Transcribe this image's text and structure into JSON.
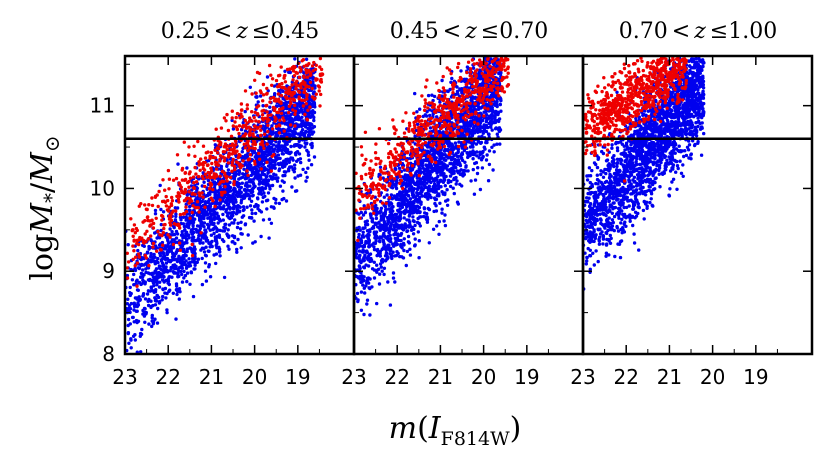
{
  "chart_data": {
    "type": "scatter",
    "panels": [
      {
        "title_lo": "0.25",
        "title_hi": "0.45",
        "title_sym1": "<",
        "title_z": "z",
        "title_sym2": "≤",
        "blue_cloud": {
          "x_start": 23.0,
          "y_start": 8.6,
          "x_end": 18.7,
          "y_end": 11.0,
          "spread": 0.32,
          "n": 2400,
          "xmin": 18.6,
          "xmax": 23.0
        },
        "red_cloud": {
          "x_start": 23.0,
          "y_start": 9.2,
          "x_end": 18.7,
          "y_end": 11.4,
          "spread": 0.24,
          "n": 700,
          "xmin": 18.4,
          "xmax": 23.0
        }
      },
      {
        "title_lo": "0.45",
        "title_hi": "0.70",
        "title_sym1": "<",
        "title_z": "z",
        "title_sym2": "≤",
        "blue_cloud": {
          "x_start": 23.0,
          "y_start": 9.1,
          "x_end": 19.8,
          "y_end": 11.2,
          "spread": 0.34,
          "n": 2400,
          "xmin": 19.6,
          "xmax": 23.0
        },
        "red_cloud": {
          "x_start": 23.0,
          "y_start": 9.9,
          "x_end": 19.6,
          "y_end": 11.5,
          "spread": 0.22,
          "n": 700,
          "xmin": 19.4,
          "xmax": 23.0
        }
      },
      {
        "title_lo": "0.70",
        "title_hi": "1.00",
        "title_sym1": "<",
        "title_z": "z",
        "title_sym2": "≤",
        "blue_cloud": {
          "x_start": 23.0,
          "y_start": 9.5,
          "x_end": 20.4,
          "y_end": 11.2,
          "spread": 0.32,
          "n": 2200,
          "xmin": 20.2,
          "xmax": 23.0
        },
        "red_cloud": {
          "x_start": 23.0,
          "y_start": 10.7,
          "x_end": 20.8,
          "y_end": 11.5,
          "spread": 0.2,
          "n": 800,
          "xmin": 20.6,
          "xmax": 23.0
        }
      }
    ],
    "series": [
      {
        "name": "blue",
        "color": "#0000ee"
      },
      {
        "name": "red",
        "color": "#ee0000"
      }
    ],
    "x_range": [
      23.0,
      17.7
    ],
    "y_range": [
      8.0,
      11.6
    ],
    "x_ticks": [
      "23",
      "22",
      "21",
      "20",
      "19"
    ],
    "x_tick_values": [
      23,
      22,
      21,
      20,
      19
    ],
    "y_ticks": [
      "8",
      "9",
      "10",
      "11"
    ],
    "y_tick_values": [
      8,
      9,
      10,
      11
    ],
    "threshold_line": 10.6,
    "ylabel": {
      "log": "log",
      "M": "M",
      "sub": "*",
      "slash": "/",
      "M2": "M",
      "sun": "⊙"
    },
    "xlabel": {
      "m": "m",
      "open": "(",
      "I": "I",
      "sub": "F814W",
      "close": ")"
    }
  }
}
